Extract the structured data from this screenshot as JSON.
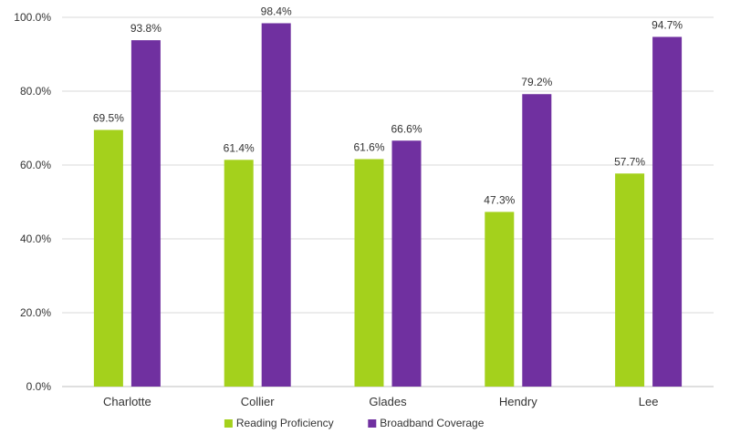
{
  "chart_data": {
    "type": "bar",
    "title": "",
    "xlabel": "",
    "ylabel": "",
    "ylim": [
      0,
      100
    ],
    "yticks": [
      "0.0%",
      "20.0%",
      "40.0%",
      "60.0%",
      "80.0%",
      "100.0%"
    ],
    "grid": true,
    "legend_position": "bottom",
    "categories": [
      "Charlotte",
      "Collier",
      "Glades",
      "Hendry",
      "Lee"
    ],
    "series": [
      {
        "name": "Reading Proficiency",
        "color": "#a4d11c",
        "values": [
          69.5,
          61.4,
          61.6,
          47.3,
          57.7
        ],
        "labels": [
          "69.5%",
          "61.4%",
          "61.6%",
          "47.3%",
          "57.7%"
        ]
      },
      {
        "name": "Broadband Coverage",
        "color": "#7030a0",
        "values": [
          93.8,
          98.4,
          66.6,
          79.2,
          94.7
        ],
        "labels": [
          "93.8%",
          "98.4%",
          "66.6%",
          "79.2%",
          "94.7%"
        ]
      }
    ]
  }
}
